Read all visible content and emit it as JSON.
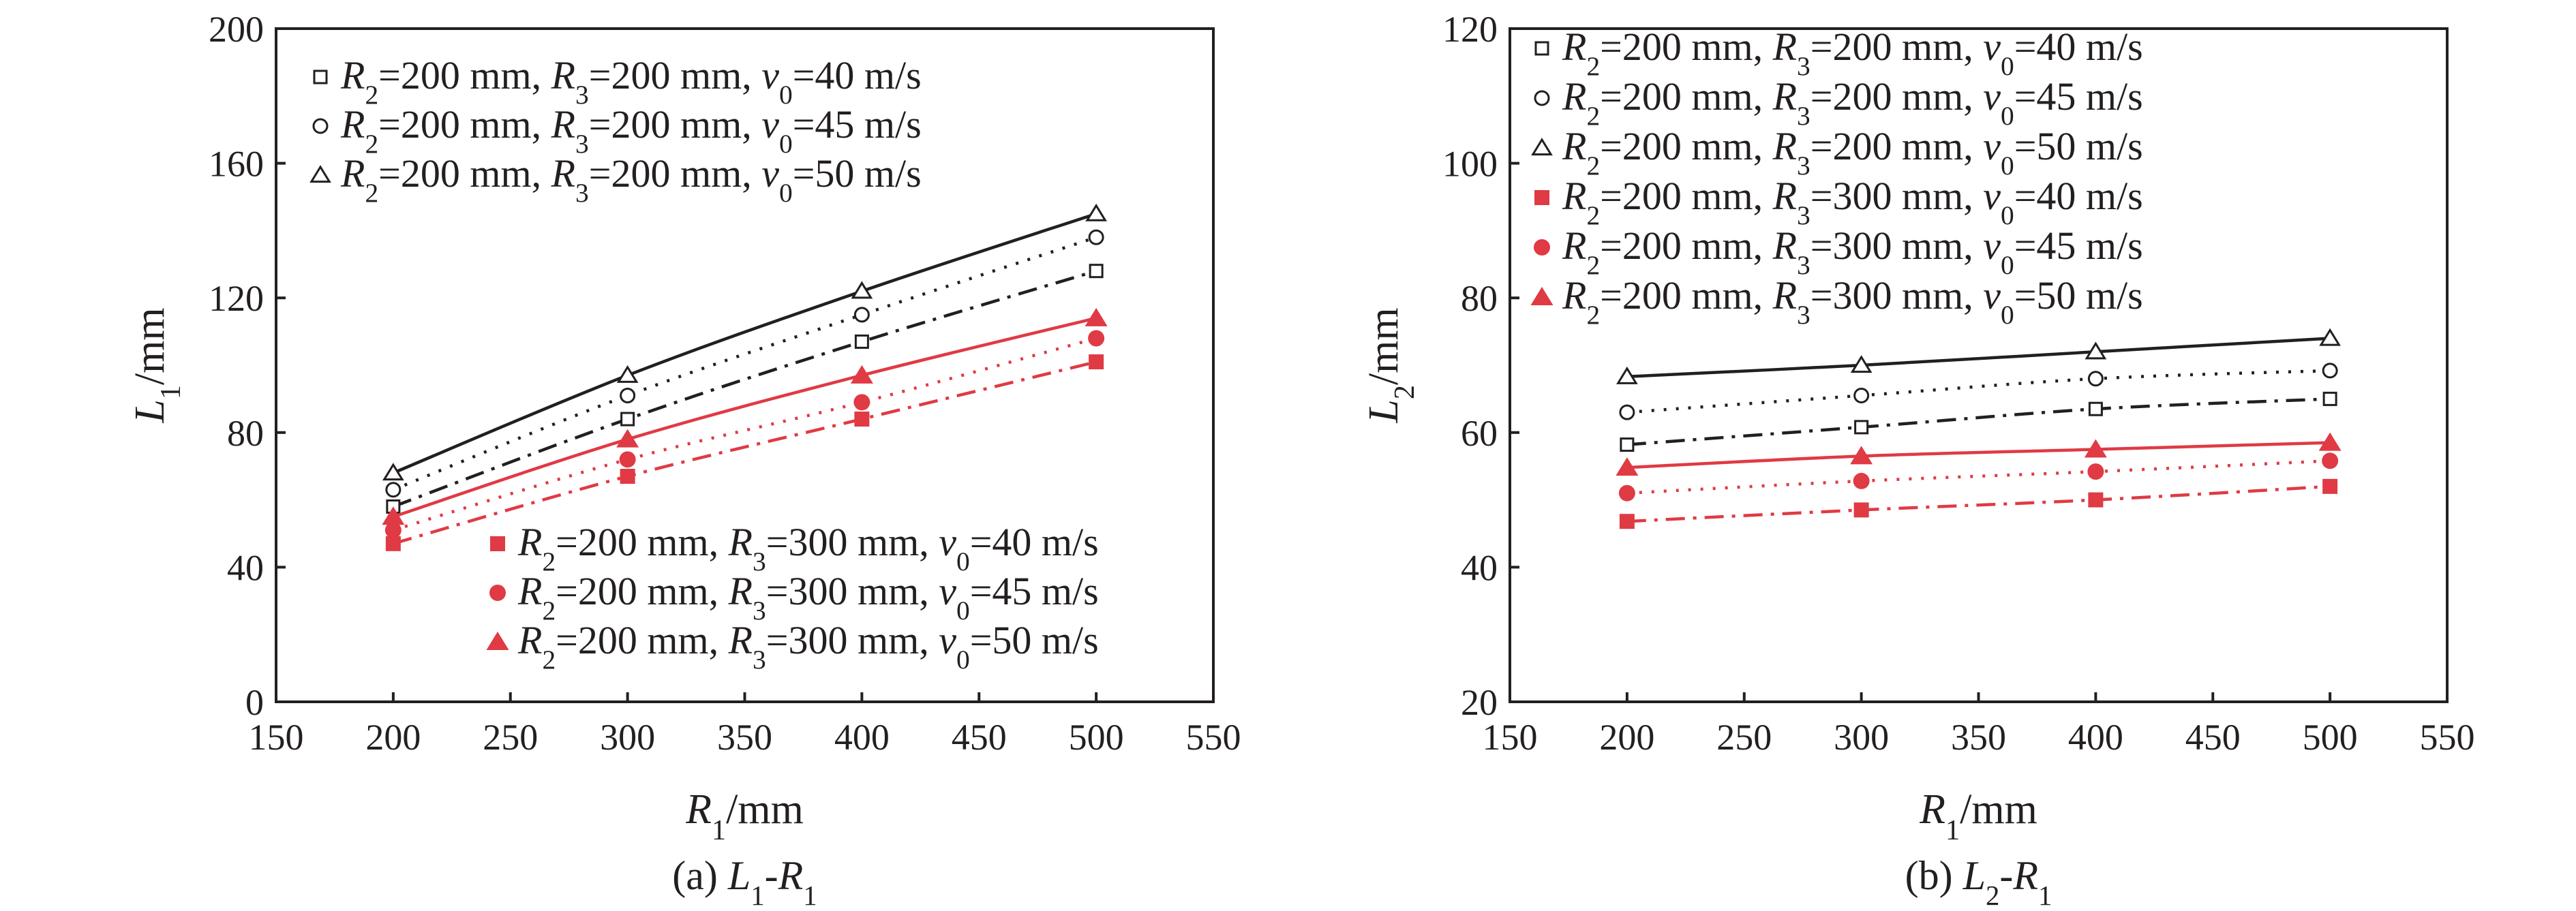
{
  "colors": {
    "black": "#231f20",
    "red": "#e03a44"
  },
  "chart_data": [
    {
      "type": "line",
      "caption": "(a) L1-R1",
      "caption_parts": [
        "(a) ",
        "L",
        "1",
        "-",
        "R",
        "1"
      ],
      "xlabel": "R1/mm",
      "xlabel_parts": [
        "R",
        "1",
        "/mm"
      ],
      "ylabel": "L1/mm",
      "ylabel_parts": [
        "L",
        "1",
        "/mm"
      ],
      "xlim": [
        150,
        550
      ],
      "ylim": [
        0,
        200
      ],
      "xticks": [
        150,
        200,
        250,
        300,
        350,
        400,
        450,
        500,
        550
      ],
      "yticks": [
        0,
        40,
        80,
        120,
        160,
        200
      ],
      "x": [
        200,
        300,
        400,
        500
      ],
      "grid": false,
      "legend_placement": [
        "top-left",
        "bottom-right"
      ],
      "series": [
        {
          "name": "R2=200 mm, R3=200 mm, v0=40 m/s",
          "name_parts": [
            "R",
            "2",
            "=200 mm, ",
            "R",
            "3",
            "=200 mm, ",
            "v",
            "0",
            "=40 m/s"
          ],
          "color": "black",
          "marker": "square-open",
          "line": "dashdot",
          "values": [
            58,
            84,
            107,
            128
          ],
          "legend_group": 0
        },
        {
          "name": "R2=200 mm, R3=200 mm, v0=45 m/s",
          "name_parts": [
            "R",
            "2",
            "=200 mm, ",
            "R",
            "3",
            "=200 mm, ",
            "v",
            "0",
            "=45 m/s"
          ],
          "color": "black",
          "marker": "circle-open",
          "line": "dotted",
          "values": [
            63,
            91,
            115,
            138
          ],
          "legend_group": 0
        },
        {
          "name": "R2=200 mm, R3=200 mm, v0=50 m/s",
          "name_parts": [
            "R",
            "2",
            "=200 mm, ",
            "R",
            "3",
            "=200 mm, ",
            "v",
            "0",
            "=50 m/s"
          ],
          "color": "black",
          "marker": "triangle-open",
          "line": "solid",
          "values": [
            68,
            97,
            122,
            145
          ],
          "legend_group": 0
        },
        {
          "name": "R2=200 mm, R3=300 mm, v0=40 m/s",
          "name_parts": [
            "R",
            "2",
            "=200 mm, ",
            "R",
            "3",
            "=300 mm, ",
            "v",
            "0",
            "=40 m/s"
          ],
          "color": "red",
          "marker": "square-filled",
          "line": "dashdot",
          "values": [
            47,
            67,
            84,
            101
          ],
          "legend_group": 1
        },
        {
          "name": "R2=200 mm, R3=300 mm, v0=45 m/s",
          "name_parts": [
            "R",
            "2",
            "=200 mm, ",
            "R",
            "3",
            "=300 mm, ",
            "v",
            "0",
            "=45 m/s"
          ],
          "color": "red",
          "marker": "circle-filled",
          "line": "dotted",
          "values": [
            51,
            72,
            89,
            108
          ],
          "legend_group": 1
        },
        {
          "name": "R2=200 mm, R3=300 mm, v0=50 m/s",
          "name_parts": [
            "R",
            "2",
            "=200 mm, ",
            "R",
            "3",
            "=300 mm, ",
            "v",
            "0",
            "=50 m/s"
          ],
          "color": "red",
          "marker": "triangle-filled",
          "line": "solid",
          "values": [
            55,
            78,
            97,
            114
          ],
          "legend_group": 1
        }
      ]
    },
    {
      "type": "line",
      "caption": "(b) L2-R1",
      "caption_parts": [
        "(b) ",
        "L",
        "2",
        "-",
        "R",
        "1"
      ],
      "xlabel": "R1/mm",
      "xlabel_parts": [
        "R",
        "1",
        "/mm"
      ],
      "ylabel": "L2/mm",
      "ylabel_parts": [
        "L",
        "2",
        "/mm"
      ],
      "xlim": [
        150,
        550
      ],
      "ylim": [
        20,
        120
      ],
      "xticks": [
        150,
        200,
        250,
        300,
        350,
        400,
        450,
        500,
        550
      ],
      "yticks": [
        20,
        40,
        60,
        80,
        100,
        120
      ],
      "x": [
        200,
        300,
        400,
        500
      ],
      "grid": false,
      "legend_placement": [
        "top-left"
      ],
      "series": [
        {
          "name": "R2=200 mm, R3=200 mm, v0=40 m/s",
          "name_parts": [
            "R",
            "2",
            "=200 mm, ",
            "R",
            "3",
            "=200 mm, ",
            "v",
            "0",
            "=40 m/s"
          ],
          "color": "black",
          "marker": "square-open",
          "line": "dashdot",
          "values": [
            58.2,
            60.8,
            63.5,
            65.0
          ],
          "legend_group": 0
        },
        {
          "name": "R2=200 mm, R3=200 mm, v0=45 m/s",
          "name_parts": [
            "R",
            "2",
            "=200 mm, ",
            "R",
            "3",
            "=200 mm, ",
            "v",
            "0",
            "=45 m/s"
          ],
          "color": "black",
          "marker": "circle-open",
          "line": "dotted",
          "values": [
            63.0,
            65.5,
            68.0,
            69.2
          ],
          "legend_group": 0
        },
        {
          "name": "R2=200 mm, R3=200 mm, v0=50 m/s",
          "name_parts": [
            "R",
            "2",
            "=200 mm, ",
            "R",
            "3",
            "=200 mm, ",
            "v",
            "0",
            "=50 m/s"
          ],
          "color": "black",
          "marker": "triangle-open",
          "line": "solid",
          "values": [
            68.3,
            70.0,
            72.0,
            74.0
          ],
          "legend_group": 0
        },
        {
          "name": "R2=200 mm, R3=300 mm, v0=40 m/s",
          "name_parts": [
            "R",
            "2",
            "=200 mm, ",
            "R",
            "3",
            "=300 mm, ",
            "v",
            "0",
            "=40 m/s"
          ],
          "color": "red",
          "marker": "square-filled",
          "line": "dashdot",
          "values": [
            46.8,
            48.5,
            50.0,
            52.0
          ],
          "legend_group": 0
        },
        {
          "name": "R2=200 mm, R3=300 mm, v0=45 m/s",
          "name_parts": [
            "R",
            "2",
            "=200 mm, ",
            "R",
            "3",
            "=300 mm, ",
            "v",
            "0",
            "=45 m/s"
          ],
          "color": "red",
          "marker": "circle-filled",
          "line": "dotted",
          "values": [
            51.0,
            52.8,
            54.2,
            55.8
          ],
          "legend_group": 0
        },
        {
          "name": "R2=200 mm, R3=300 mm, v0=50 m/s",
          "name_parts": [
            "R",
            "2",
            "=200 mm, ",
            "R",
            "3",
            "=300 mm, ",
            "v",
            "0",
            "=50 m/s"
          ],
          "color": "red",
          "marker": "triangle-filled",
          "line": "solid",
          "values": [
            54.8,
            56.5,
            57.5,
            58.5
          ],
          "legend_group": 0
        }
      ]
    }
  ]
}
